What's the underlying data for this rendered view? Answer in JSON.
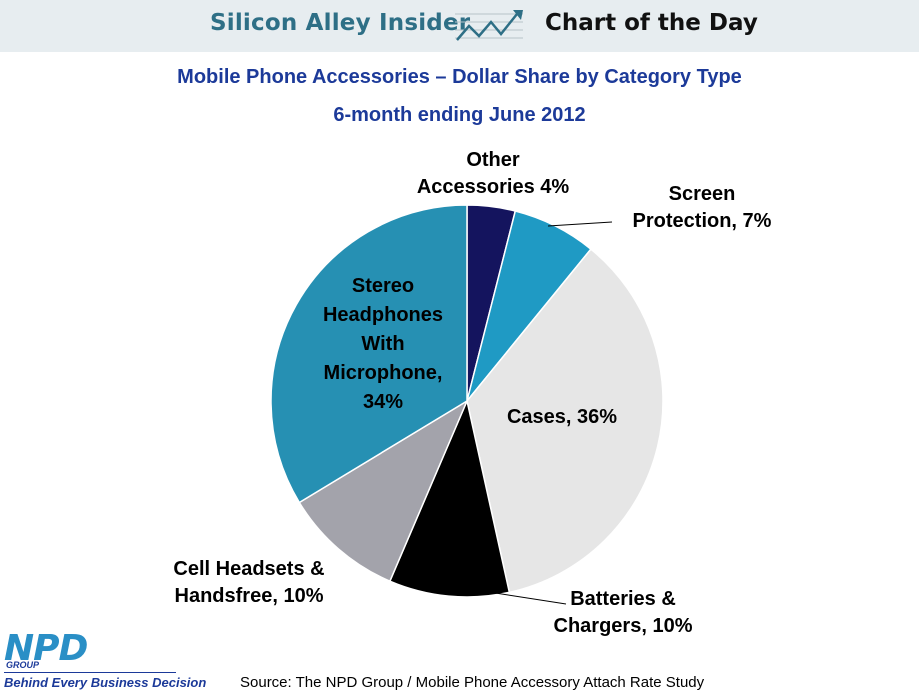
{
  "banner": {
    "left_text": "Silicon Alley Insider",
    "right_text": "Chart of the Day",
    "icon": "trend-chart-icon"
  },
  "chart_data": {
    "type": "pie",
    "title": "Mobile Phone Accessories – Dollar Share by Category Type",
    "subtitle": "6-month ending June 2012",
    "slices": [
      {
        "category": "Other Accessories",
        "value": 4,
        "label": [
          "Other",
          "Accessories 4%"
        ],
        "color": "#14145e"
      },
      {
        "category": "Screen Protection",
        "value": 7,
        "label": [
          "Screen",
          "Protection,  7%"
        ],
        "color": "#1f9ac4"
      },
      {
        "category": "Cases",
        "value": 36,
        "label": [
          "Cases, 36%"
        ],
        "color": "#e6e6e6"
      },
      {
        "category": "Batteries & Chargers",
        "value": 10,
        "label": [
          "Batteries &",
          "Chargers, 10%"
        ],
        "color": "#000000"
      },
      {
        "category": "Cell Headsets & Handsfree",
        "value": 10,
        "label": [
          "Cell Headsets &",
          "Handsfree, 10%"
        ],
        "color": "#a3a3ab"
      },
      {
        "category": "Stereo Headphones With Microphone",
        "value": 34,
        "label": [
          "Stereo",
          "Headphones",
          "With",
          "Microphone,",
          "34%"
        ],
        "color": "#2690b3"
      }
    ]
  },
  "footer": {
    "logo_text": "NPD",
    "logo_group": "GROUP",
    "tagline": "Behind Every Business Decision",
    "source": "Source: The NPD Group / Mobile Phone Accessory Attach Rate Study"
  }
}
